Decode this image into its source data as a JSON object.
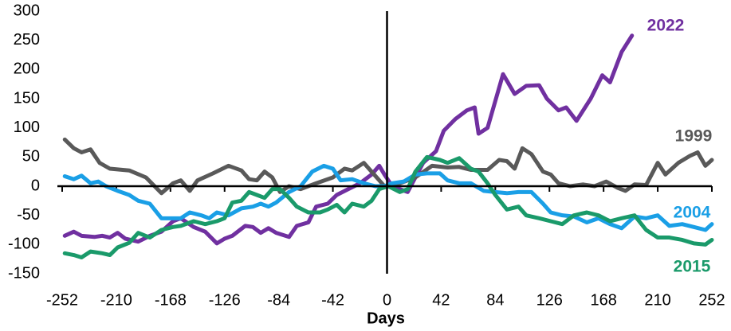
{
  "chart_data": {
    "type": "line",
    "xlabel": "Days",
    "xlim": [
      -252,
      252
    ],
    "ylim": [
      -150,
      300
    ],
    "xticks": [
      -252,
      -210,
      -168,
      -126,
      -84,
      -42,
      0,
      42,
      84,
      126,
      168,
      210,
      252
    ],
    "yticks": [
      -150,
      -100,
      -50,
      0,
      50,
      100,
      150,
      200,
      250,
      300
    ],
    "series": [
      {
        "name": "2022",
        "color": "#7030a0",
        "x": [
          -250,
          -243,
          -237,
          -227,
          -221,
          -215,
          -209,
          -203,
          -193,
          -184,
          -175,
          -166,
          -160,
          -150,
          -141,
          -132,
          -126,
          -120,
          -110,
          -104,
          -98,
          -92,
          -86,
          -76,
          -70,
          -61,
          -55,
          -46,
          -39,
          -30,
          -21,
          -12,
          -6,
          -2,
          4,
          10,
          16,
          22,
          28,
          38,
          44,
          53,
          62,
          68,
          71,
          78,
          90,
          99,
          108,
          118,
          124,
          133,
          139,
          147,
          158,
          167,
          173,
          182,
          190
        ],
        "values": [
          -85,
          -78,
          -85,
          -87,
          -85,
          -88,
          -80,
          -90,
          -95,
          -85,
          -78,
          -60,
          -55,
          -70,
          -78,
          -98,
          -90,
          -85,
          -68,
          -70,
          -80,
          -72,
          -80,
          -87,
          -68,
          -62,
          -35,
          -30,
          -15,
          -5,
          5,
          20,
          35,
          20,
          0,
          -5,
          -10,
          15,
          40,
          60,
          95,
          115,
          130,
          135,
          90,
          100,
          192,
          158,
          172,
          173,
          150,
          130,
          135,
          112,
          150,
          190,
          178,
          230,
          258
        ]
      },
      {
        "name": "1999",
        "color": "#595959",
        "x": [
          -250,
          -243,
          -237,
          -230,
          -223,
          -215,
          -200,
          -187,
          -175,
          -166,
          -160,
          -153,
          -147,
          -135,
          -123,
          -113,
          -107,
          -101,
          -95,
          -89,
          -83,
          -76,
          -67,
          -55,
          -42,
          -33,
          -27,
          -18,
          -12,
          -2,
          10,
          22,
          35,
          47,
          56,
          65,
          78,
          87,
          93,
          99,
          105,
          112,
          121,
          127,
          133,
          142,
          152,
          161,
          170,
          179,
          185,
          192,
          201,
          210,
          216,
          226,
          235,
          241,
          247,
          252
        ],
        "values": [
          80,
          65,
          58,
          63,
          40,
          30,
          27,
          15,
          -12,
          5,
          10,
          -8,
          10,
          22,
          35,
          27,
          12,
          10,
          25,
          15,
          -10,
          0,
          -5,
          5,
          15,
          30,
          27,
          40,
          25,
          0,
          5,
          15,
          35,
          32,
          33,
          28,
          28,
          45,
          43,
          30,
          65,
          55,
          25,
          20,
          5,
          0,
          3,
          0,
          8,
          -3,
          -8,
          3,
          2,
          40,
          20,
          40,
          52,
          58,
          35,
          45
        ]
      },
      {
        "name": "2004",
        "color": "#1a9fe6",
        "x": [
          -250,
          -243,
          -237,
          -230,
          -224,
          -218,
          -209,
          -200,
          -193,
          -184,
          -175,
          -166,
          -160,
          -153,
          -144,
          -138,
          -132,
          -123,
          -113,
          -104,
          -98,
          -92,
          -86,
          -76,
          -67,
          -58,
          -49,
          -42,
          -36,
          -27,
          -18,
          -9,
          -2,
          4,
          13,
          22,
          31,
          41,
          47,
          56,
          65,
          75,
          84,
          93,
          102,
          112,
          121,
          127,
          136,
          145,
          155,
          164,
          173,
          182,
          192,
          201,
          210,
          219,
          229,
          238,
          247,
          252
        ],
        "values": [
          17,
          12,
          18,
          5,
          8,
          0,
          -8,
          -15,
          -25,
          -30,
          -55,
          -55,
          -55,
          -45,
          -50,
          -55,
          -45,
          -50,
          -38,
          -35,
          -30,
          -35,
          -28,
          -10,
          0,
          25,
          35,
          30,
          10,
          12,
          5,
          0,
          0,
          5,
          8,
          20,
          22,
          22,
          10,
          5,
          5,
          -8,
          -10,
          -12,
          -10,
          -10,
          -30,
          -45,
          -50,
          -52,
          -62,
          -55,
          -65,
          -72,
          -52,
          -55,
          -50,
          -68,
          -65,
          -70,
          -75,
          -65
        ]
      },
      {
        "name": "2015",
        "color": "#1a9a6a",
        "x": [
          -250,
          -243,
          -237,
          -230,
          -221,
          -215,
          -209,
          -200,
          -193,
          -184,
          -175,
          -166,
          -160,
          -150,
          -141,
          -132,
          -126,
          -120,
          -113,
          -107,
          -101,
          -95,
          -89,
          -83,
          -76,
          -70,
          -61,
          -52,
          -46,
          -39,
          -33,
          -27,
          -18,
          -12,
          -6,
          1,
          10,
          16,
          22,
          31,
          41,
          47,
          56,
          65,
          71,
          78,
          84,
          93,
          102,
          108,
          118,
          127,
          136,
          145,
          155,
          164,
          173,
          182,
          192,
          201,
          210,
          219,
          229,
          238,
          247,
          252
        ],
        "values": [
          -115,
          -118,
          -122,
          -112,
          -115,
          -118,
          -105,
          -97,
          -80,
          -88,
          -75,
          -70,
          -68,
          -60,
          -65,
          -60,
          -55,
          -28,
          -25,
          -10,
          -15,
          -20,
          -5,
          -5,
          -20,
          -35,
          -45,
          -45,
          -40,
          -32,
          -45,
          -30,
          -35,
          -25,
          -5,
          0,
          -10,
          -5,
          25,
          50,
          45,
          40,
          48,
          30,
          25,
          5,
          -15,
          -40,
          -35,
          -50,
          -55,
          -60,
          -65,
          -50,
          -45,
          -50,
          -60,
          -55,
          -50,
          -75,
          -88,
          -88,
          -92,
          -98,
          -100,
          -92
        ]
      }
    ]
  }
}
